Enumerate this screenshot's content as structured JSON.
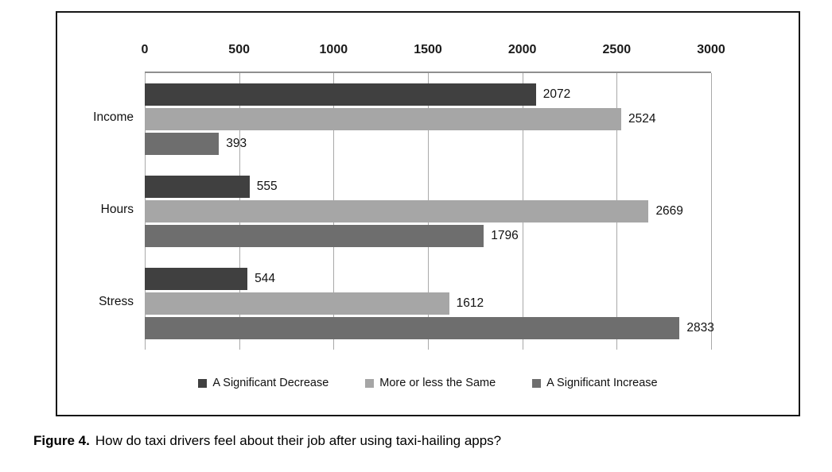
{
  "chart_data": {
    "type": "bar",
    "orientation": "horizontal",
    "title": "",
    "xlabel": "",
    "ylabel": "",
    "xlim": [
      0,
      3000
    ],
    "x_ticks": [
      0,
      500,
      1000,
      1500,
      2000,
      2500,
      3000
    ],
    "grid": true,
    "legend_position": "bottom",
    "axis_position": "top",
    "categories": [
      "Income",
      "Hours",
      "Stress"
    ],
    "series": [
      {
        "name": "A Significant Decrease",
        "color": "#404040",
        "values": [
          2072,
          555,
          544
        ]
      },
      {
        "name": "More or less the Same",
        "color": "#a6a6a6",
        "values": [
          2524,
          2669,
          1612
        ]
      },
      {
        "name": "A Significant Increase",
        "color": "#6e6e6e",
        "values": [
          393,
          1796,
          2833
        ]
      }
    ]
  },
  "caption": {
    "label": "Figure 4.",
    "text": "How do taxi drivers feel about their job after using taxi-hailing apps?"
  }
}
